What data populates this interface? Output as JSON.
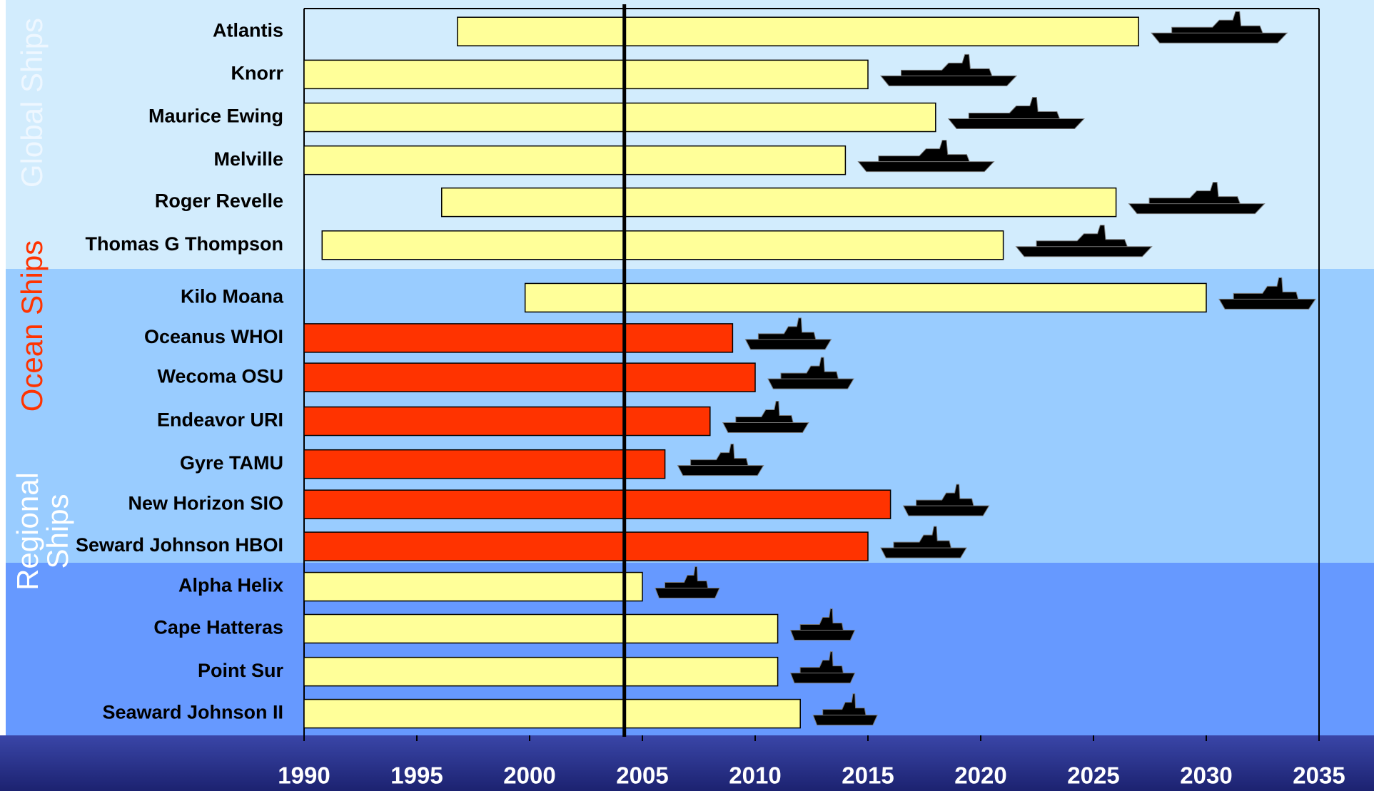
{
  "chart_data": {
    "type": "range-bar",
    "xlim": [
      1990,
      2035
    ],
    "xticks": [
      1990,
      1995,
      2000,
      2005,
      2010,
      2015,
      2020,
      2025,
      2030,
      2035
    ],
    "reference_line": 2004.2,
    "groups": [
      {
        "label": "Global Ships",
        "band_color": "#d2ecfd",
        "label_color": "#eef7ff",
        "categories": [
          "Atlantis",
          "Knorr",
          "Maurice Ewing",
          "Melville",
          "Roger Revelle",
          "Thomas G Thompson"
        ],
        "start": [
          1996.8,
          1990,
          1990,
          1990,
          1996.1,
          1990.8
        ],
        "end": [
          2027,
          2015,
          2018,
          2014,
          2026,
          2021
        ],
        "bar_colors": [
          "#ffff99",
          "#ffff99",
          "#ffff99",
          "#ffff99",
          "#ffff99",
          "#ffff99"
        ]
      },
      {
        "label": "Ocean Ships",
        "band_color": "#99ccff",
        "label_color": "#ff3300",
        "categories": [
          "Kilo Moana",
          "Oceanus WHOI",
          "Wecoma OSU",
          "Endeavor URI",
          "Gyre TAMU",
          "New Horizon SIO",
          "Seward Johnson HBOI"
        ],
        "start": [
          1999.8,
          1990,
          1990,
          1990,
          1990,
          1990,
          1990
        ],
        "end": [
          2030,
          2009,
          2010,
          2008,
          2006,
          2016,
          2015
        ],
        "bar_colors": [
          "#ffff99",
          "#ff3300",
          "#ff3300",
          "#ff3300",
          "#ff3300",
          "#ff3300",
          "#ff3300"
        ]
      },
      {
        "label": "Regional Ships",
        "band_color": "#6699ff",
        "label_color": "#ffffff",
        "categories": [
          "Alpha Helix",
          "Cape Hatteras",
          "Point Sur",
          "Seaward Johnson II"
        ],
        "start": [
          1990,
          1990,
          1990,
          1990
        ],
        "end": [
          2005,
          2011,
          2011,
          2012
        ],
        "bar_colors": [
          "#ffff99",
          "#ffff99",
          "#ffff99",
          "#ffff99"
        ]
      }
    ]
  }
}
